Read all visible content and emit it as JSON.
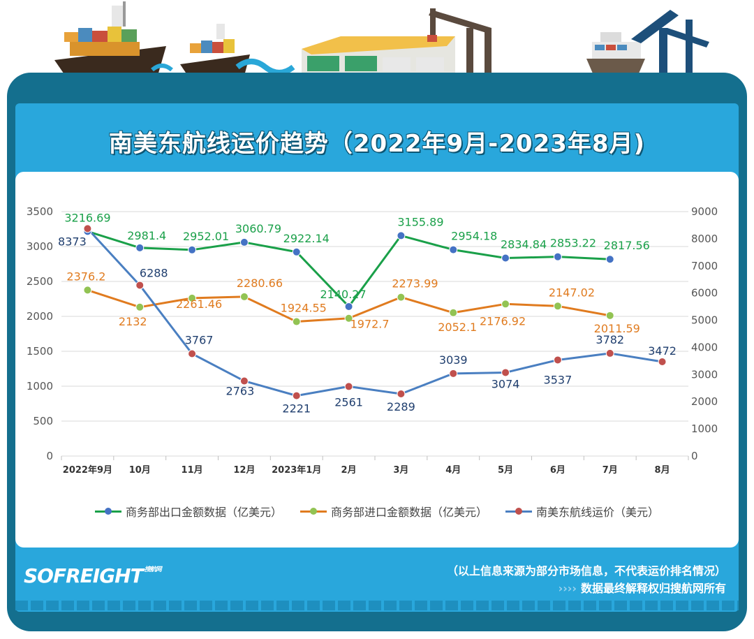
{
  "title": "南美东航线运价趋势（2022年9月-2023年8月)",
  "brand": {
    "logo": "SOFREIGHT",
    "sub": "搜航网"
  },
  "footer": {
    "source": "（以上信息来源为部分市场信息，不代表运价排名情况）",
    "arrows": "››››",
    "rights": "数据最终解释权归搜航网所有"
  },
  "colors": {
    "export_line": "#1aa049",
    "export_marker": "#4472c4",
    "export_label": "#1aa049",
    "import_line": "#e07b1f",
    "import_marker": "#92c353",
    "import_label": "#e07b1f",
    "freight_line": "#4a7fc1",
    "freight_marker": "#c0504d",
    "freight_label": "#1f3e6e",
    "frame": "#146f8e",
    "panel": "#29a7dc"
  },
  "chart_data": {
    "type": "line",
    "title": "南美东航线运价趋势（2022年9月-2023年8月)",
    "categories": [
      "2022年9月",
      "10月",
      "11月",
      "12月",
      "2023年1月",
      "2月",
      "3月",
      "4月",
      "5月",
      "6月",
      "7月",
      "8月"
    ],
    "left_axis": {
      "ylim": [
        0,
        3500
      ],
      "ticks": [
        0,
        500,
        1000,
        1500,
        2000,
        2500,
        3000,
        3500
      ]
    },
    "right_axis": {
      "ylim": [
        0,
        9000
      ],
      "ticks": [
        0,
        1000,
        2000,
        3000,
        4000,
        5000,
        6000,
        7000,
        8000,
        9000
      ]
    },
    "grid": true,
    "legend_position": "bottom",
    "series": [
      {
        "name": "商务部出口金额数据（亿美元）",
        "axis": "left",
        "values": [
          3216.69,
          2981.4,
          2952.01,
          3060.79,
          2922.14,
          2140.27,
          3155.89,
          2954.18,
          2834.84,
          2853.22,
          2817.56,
          null
        ],
        "labels": [
          "3216.69",
          "2981.4",
          "2952.01",
          "3060.79",
          "2922.14",
          "2140.27",
          "3155.89",
          "2954.18",
          "2834.84",
          "2853.22",
          "2817.56",
          ""
        ]
      },
      {
        "name": "商务部进口金额数据（亿美元）",
        "axis": "left",
        "values": [
          2376.2,
          2132,
          2261.46,
          2280.66,
          1924.55,
          1972.7,
          2273.99,
          2052.1,
          2176.92,
          2147.02,
          2011.59,
          null
        ],
        "labels": [
          "2376.2",
          "2132",
          "2261.46",
          "2280.66",
          "1924.55",
          "1972.7",
          "2273.99",
          "2052.1",
          "2176.92",
          "2147.02",
          "2011.59",
          ""
        ]
      },
      {
        "name": "南美东航线运价（美元）",
        "axis": "right",
        "values": [
          8373,
          6288,
          3767,
          2763,
          2221,
          2561,
          2289,
          3039,
          3074,
          3537,
          3782,
          3472
        ],
        "labels": [
          "8373",
          "6288",
          "3767",
          "2763",
          "2221",
          "2561",
          "2289",
          "3039",
          "3074",
          "3537",
          "3782",
          "3472"
        ]
      }
    ]
  }
}
